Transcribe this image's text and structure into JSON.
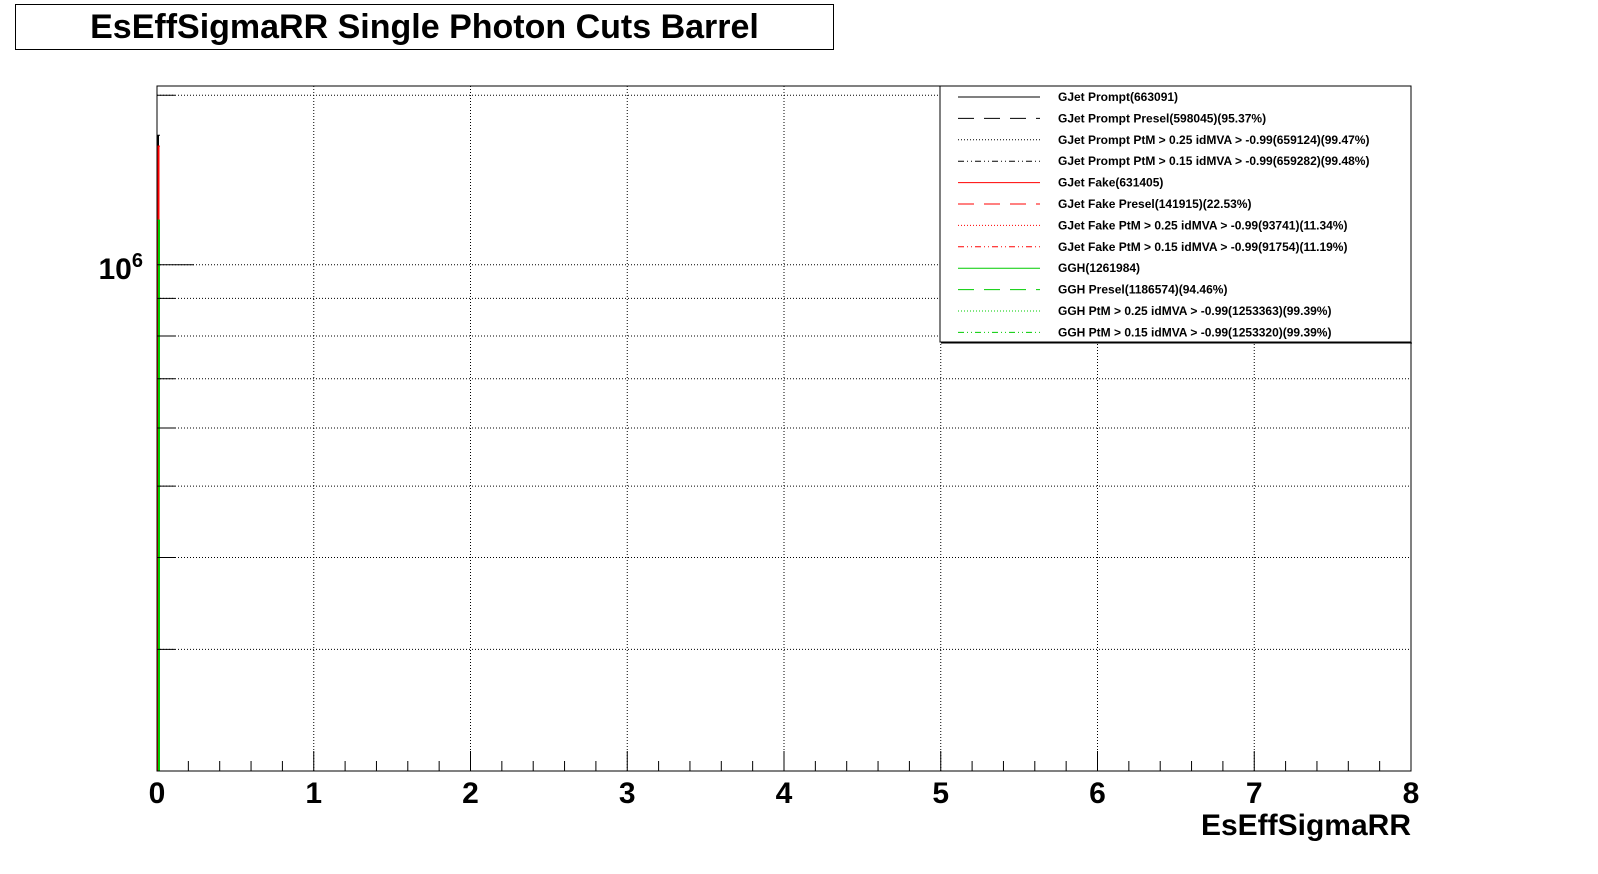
{
  "chart_data": {
    "type": "line",
    "title": "EsEffSigmaRR Single Photon Cuts Barrel",
    "xlabel": "EsEffSigmaRR",
    "ylabel": "",
    "xlim": [
      0,
      8
    ],
    "ylog": true,
    "ylim": [
      205000,
      1750000
    ],
    "grid": true,
    "x_ticks": [
      "0",
      "1",
      "2",
      "3",
      "4",
      "5",
      "6",
      "7",
      "8"
    ],
    "y_tick_label": {
      "base": "10",
      "exponent": "6",
      "value": 1000000
    },
    "legend_position": "top-right",
    "series": [
      {
        "name": "GJet Prompt(663091)",
        "color": "#000000",
        "dash": "solid",
        "peak": 1500000
      },
      {
        "name": "GJet Prompt Presel(598045)(95.37%)",
        "color": "#000000",
        "dash": "dashed"
      },
      {
        "name": "GJet Prompt PtM > 0.25 idMVA > -0.99(659124)(99.47%)",
        "color": "#000000",
        "dash": "dotted"
      },
      {
        "name": "GJet Prompt PtM > 0.15 idMVA > -0.99(659282)(99.48%)",
        "color": "#000000",
        "dash": "dashdot"
      },
      {
        "name": "GJet Fake(631405)",
        "color": "#ff0000",
        "dash": "solid",
        "peak": 1450000
      },
      {
        "name": "GJet Fake Presel(141915)(22.53%)",
        "color": "#ff0000",
        "dash": "dashed"
      },
      {
        "name": "GJet Fake PtM > 0.25 idMVA > -0.99(93741)(11.34%)",
        "color": "#ff0000",
        "dash": "dotted"
      },
      {
        "name": "GJet Fake PtM > 0.15 idMVA > -0.99(91754)(11.19%)",
        "color": "#ff0000",
        "dash": "dashdot"
      },
      {
        "name": "GGH(1261984)",
        "color": "#00cc00",
        "dash": "solid",
        "peak": 1150000
      },
      {
        "name": "GGH Presel(1186574)(94.46%)",
        "color": "#00cc00",
        "dash": "dashed"
      },
      {
        "name": "GGH PtM > 0.25 idMVA > -0.99(1253363)(99.39%)",
        "color": "#00cc00",
        "dash": "dotted"
      },
      {
        "name": "GGH PtM > 0.15 idMVA > -0.99(1253320)(99.39%)",
        "color": "#00cc00",
        "dash": "dashdot"
      }
    ]
  }
}
